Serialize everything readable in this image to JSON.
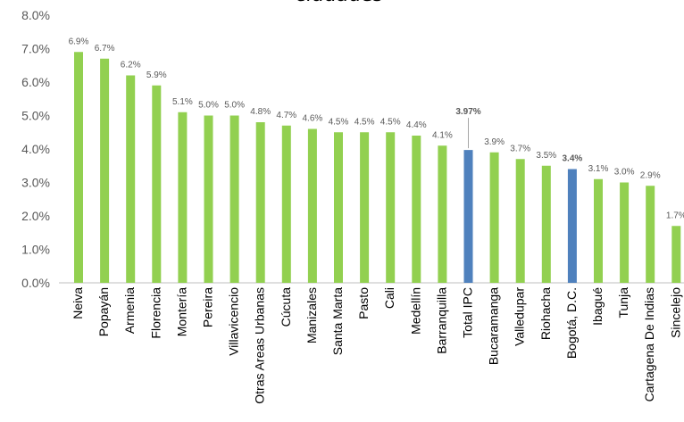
{
  "chart_data": {
    "type": "bar",
    "title": "ciudades",
    "xlabel": "",
    "ylabel": "",
    "ylim": [
      0,
      8
    ],
    "y_ticks": [
      "0.0%",
      "1.0%",
      "2.0%",
      "3.0%",
      "4.0%",
      "5.0%",
      "6.0%",
      "7.0%",
      "8.0%"
    ],
    "grid": false,
    "legend": "none",
    "colors": {
      "default": "#92d050",
      "highlight": "#4f81bd",
      "label": "#595959",
      "axis": "#595959"
    },
    "categories": [
      "Neiva",
      "Popayán",
      "Armenia",
      "Florencia",
      "Montería",
      "Pereira",
      "Villavicencio",
      "Otras Areas Urbanas",
      "Cúcuta",
      "Manizales",
      "Santa Marta",
      "Pasto",
      "Cali",
      "Medellín",
      "Barranquilla",
      "Total IPC",
      "Bucaramanga",
      "Valledupar",
      "Riohacha",
      "Bogotá, D.C.",
      "Ibagué",
      "Tunja",
      "Cartagena De Indias",
      "Sincelejo"
    ],
    "values": [
      6.9,
      6.7,
      6.2,
      5.9,
      5.1,
      5.0,
      5.0,
      4.8,
      4.7,
      4.6,
      4.5,
      4.5,
      4.5,
      4.4,
      4.1,
      3.97,
      3.9,
      3.7,
      3.5,
      3.4,
      3.1,
      3.0,
      2.9,
      1.7
    ],
    "data_labels": [
      "6.9%",
      "6.7%",
      "6.2%",
      "5.9%",
      "5.1%",
      "5.0%",
      "5.0%",
      "4.8%",
      "4.7%",
      "4.6%",
      "4.5%",
      "4.5%",
      "4.5%",
      "4.4%",
      "4.1%",
      "3.97%",
      "3.9%",
      "3.7%",
      "3.5%",
      "3.4%",
      "3.1%",
      "3.0%",
      "2.9%",
      "1.7%"
    ],
    "highlighted": [
      "Total IPC",
      "Bogotá, D.C."
    ]
  }
}
